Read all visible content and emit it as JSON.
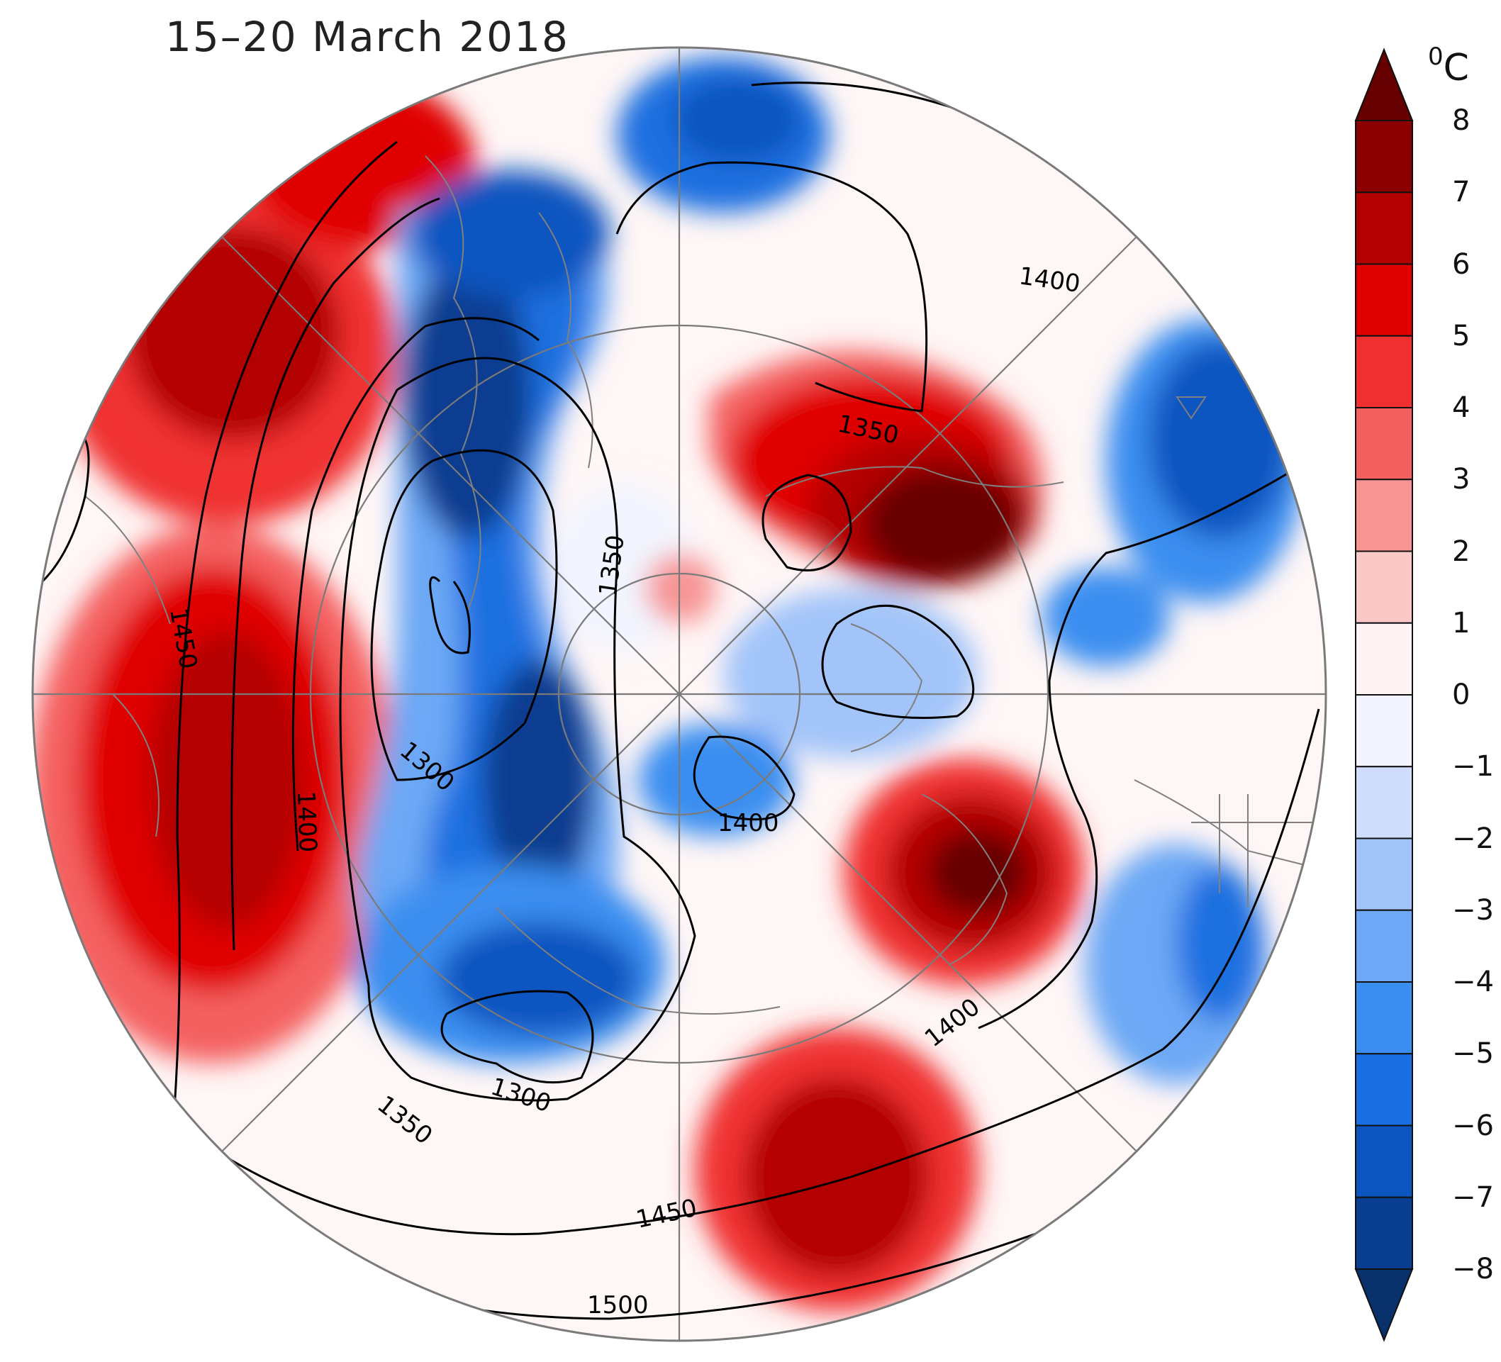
{
  "title": "15–20 March 2018",
  "colorbar": {
    "unit": "0C",
    "unit_base": "C",
    "unit_superscript": "0",
    "ticks": [
      "8",
      "7",
      "6",
      "5",
      "4",
      "3",
      "2",
      "1",
      "0",
      "−1",
      "−2",
      "−3",
      "−4",
      "−5",
      "−6",
      "−7",
      "−8"
    ],
    "colors": [
      "#660000",
      "#8b0000",
      "#b30000",
      "#e00000",
      "#f03030",
      "#f46060",
      "#f79494",
      "#fbc8c8",
      "#fff4f4",
      "#f2f5ff",
      "#cfdcfb",
      "#a2c4f9",
      "#6ca8f5",
      "#3a8ef0",
      "#1a6fe0",
      "#0a55c0",
      "#083d90",
      "#08306b"
    ]
  },
  "map": {
    "projection": "polar stereographic (north pole)",
    "shading": "850 hPa temperature anomaly (°C)",
    "contours": "geopotential height",
    "contour_labels": [
      "1400",
      "1350",
      "1450",
      "1300",
      "1400",
      "1400",
      "1350",
      "1300",
      "1300",
      "1350",
      "1400",
      "1450",
      "1500"
    ]
  }
}
